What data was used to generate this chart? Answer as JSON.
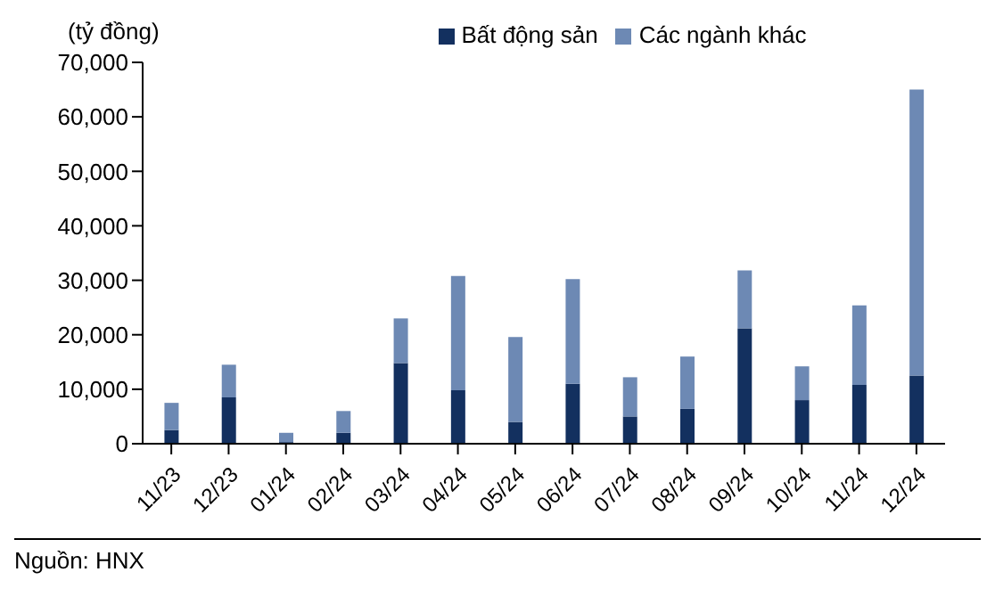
{
  "chart_data": {
    "type": "bar",
    "stacked": true,
    "ylabel": "(tỷ đồng)",
    "categories": [
      "11/23",
      "12/23",
      "01/24",
      "02/24",
      "03/24",
      "04/24",
      "05/24",
      "06/24",
      "07/24",
      "08/24",
      "09/24",
      "10/24",
      "11/24",
      "12/24"
    ],
    "series": [
      {
        "name": "Bất động sản",
        "color": "#13305f",
        "values": [
          2500,
          8500,
          300,
          2000,
          14800,
          9800,
          4000,
          11000,
          5000,
          6400,
          21200,
          8000,
          10800,
          12500
        ]
      },
      {
        "name": "Các ngành khác",
        "color": "#6d89b4",
        "values": [
          5000,
          6000,
          1700,
          4000,
          8200,
          21000,
          15600,
          19200,
          7200,
          9600,
          10600,
          6200,
          14600,
          52500
        ]
      }
    ],
    "ylim": [
      0,
      70000
    ],
    "yticks": [
      0,
      {
        "value": 10000,
        "label": "10,000"
      },
      {
        "value": 20000,
        "label": "20,000"
      },
      {
        "value": 30000,
        "label": "30,000"
      },
      {
        "value": 40000,
        "label": "40,000"
      },
      {
        "value": 50000,
        "label": "50,000"
      },
      {
        "value": 60000,
        "label": "60,000"
      },
      {
        "value": 70000,
        "label": "70,000"
      }
    ],
    "grid": false,
    "legend": "top",
    "annotations": [
      "Nguồn: HNX"
    ]
  }
}
